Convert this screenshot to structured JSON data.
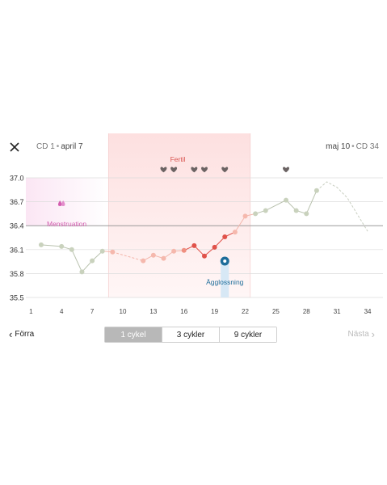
{
  "header": {
    "left_cd": "CD 1",
    "left_date": "april 7",
    "right_date": "maj 10",
    "right_cd": "CD 34"
  },
  "footer": {
    "prev_label": "Förra",
    "next_label": "Nästa",
    "segments": [
      {
        "label": "1 cykel",
        "active": true
      },
      {
        "label": "3 cykler",
        "active": false
      },
      {
        "label": "9 cykler",
        "active": false
      }
    ]
  },
  "colors": {
    "fertile_zone": "#fde3e3",
    "menstruation_zone": "#fbe6f4",
    "menstruation_label": "#d35fb0",
    "fertile_label": "#d9534f",
    "ovulation": "#1e6d9a",
    "neutral_point": "#c9d2bd",
    "neutral_line": "#b9c2ae",
    "heart": "#6b6363"
  },
  "chart_data": {
    "type": "line",
    "xlim": [
      0.5,
      35.5
    ],
    "ylim": [
      35.5,
      37.0
    ],
    "x_ticks": [
      1,
      4,
      7,
      10,
      13,
      16,
      19,
      22,
      25,
      28,
      31,
      34
    ],
    "y_ticks": [
      35.5,
      35.8,
      36.1,
      36.4,
      36.7,
      37.0
    ],
    "coverline": 36.4,
    "zones": [
      {
        "label": "Menstruation",
        "from": 0.5,
        "to": 8.6,
        "ymin": 36.4,
        "ymax": 37.0
      },
      {
        "label": "Fertil",
        "from": 8.6,
        "to": 22.5,
        "ymin": 35.5,
        "ymax": 37.0
      }
    ],
    "menstruation_days": [
      4
    ],
    "ovulation": {
      "label": "Ägglossning",
      "day": 20
    },
    "intercourse_days": [
      14,
      15,
      17,
      18,
      20,
      26
    ],
    "points": [
      {
        "x": 2,
        "y": 36.16,
        "phase": "neutral"
      },
      {
        "x": 4,
        "y": 36.14,
        "phase": "neutral"
      },
      {
        "x": 5,
        "y": 36.1,
        "phase": "neutral"
      },
      {
        "x": 6,
        "y": 35.82,
        "phase": "neutral"
      },
      {
        "x": 7,
        "y": 35.96,
        "phase": "neutral"
      },
      {
        "x": 8,
        "y": 36.08,
        "phase": "neutral"
      },
      {
        "x": 9,
        "y": 36.07,
        "phase": "fertile-light"
      },
      {
        "x": 12,
        "y": 35.96,
        "phase": "fertile-light"
      },
      {
        "x": 13,
        "y": 36.03,
        "phase": "fertile-light"
      },
      {
        "x": 14,
        "y": 35.99,
        "phase": "fertile-light"
      },
      {
        "x": 15,
        "y": 36.08,
        "phase": "fertile-light"
      },
      {
        "x": 16,
        "y": 36.09,
        "phase": "fertile-mid"
      },
      {
        "x": 17,
        "y": 36.15,
        "phase": "fertile-high"
      },
      {
        "x": 18,
        "y": 36.02,
        "phase": "fertile-high"
      },
      {
        "x": 19,
        "y": 36.13,
        "phase": "fertile-high"
      },
      {
        "x": 20,
        "y": 36.26,
        "phase": "fertile-high"
      },
      {
        "x": 21,
        "y": 36.32,
        "phase": "fertile-light"
      },
      {
        "x": 22,
        "y": 36.52,
        "phase": "fertile-light"
      },
      {
        "x": 23,
        "y": 36.55,
        "phase": "neutral"
      },
      {
        "x": 24,
        "y": 36.59,
        "phase": "neutral"
      },
      {
        "x": 26,
        "y": 36.72,
        "phase": "neutral"
      },
      {
        "x": 27,
        "y": 36.59,
        "phase": "neutral"
      },
      {
        "x": 28,
        "y": 36.55,
        "phase": "neutral"
      },
      {
        "x": 29,
        "y": 36.84,
        "phase": "neutral"
      }
    ],
    "gaps_after": [
      9
    ],
    "prediction": [
      {
        "x": 29,
        "y": 36.84
      },
      {
        "x": 30,
        "y": 36.95
      },
      {
        "x": 31,
        "y": 36.88
      },
      {
        "x": 32,
        "y": 36.75
      },
      {
        "x": 33,
        "y": 36.54
      },
      {
        "x": 34,
        "y": 36.33
      }
    ]
  }
}
